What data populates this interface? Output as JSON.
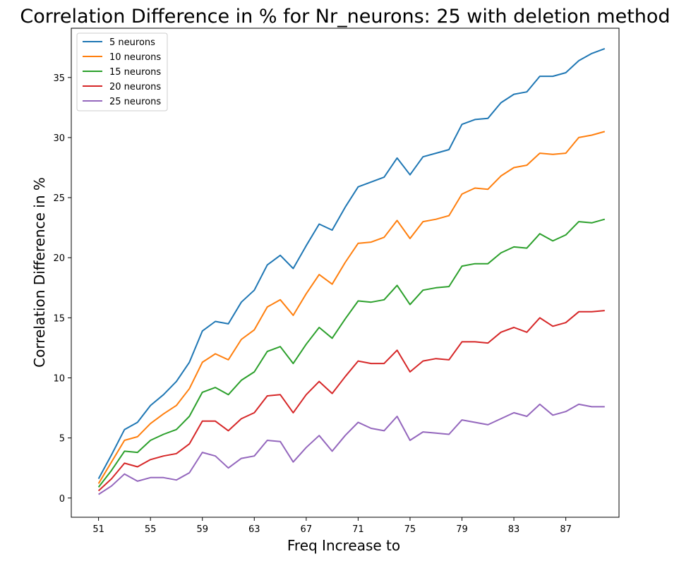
{
  "chart_data": {
    "type": "line",
    "title": "Correlation Difference in % for Nr_neurons:  25 with deletion method",
    "xlabel": "Freq Increase to",
    "ylabel": "Correlation Difference in %",
    "xlim": [
      48.9,
      91.1
    ],
    "ylim": [
      -1.6,
      39.1
    ],
    "xticks": [
      51,
      55,
      59,
      63,
      67,
      71,
      75,
      79,
      83,
      87
    ],
    "yticks": [
      0,
      5,
      10,
      15,
      20,
      25,
      30,
      35
    ],
    "grid": false,
    "legend_position": "top-left",
    "x": [
      51,
      52,
      53,
      54,
      55,
      56,
      57,
      58,
      59,
      60,
      61,
      62,
      63,
      64,
      65,
      66,
      67,
      68,
      69,
      70,
      71,
      72,
      73,
      74,
      75,
      76,
      77,
      78,
      79,
      80,
      81,
      82,
      83,
      84,
      85,
      86,
      87,
      88,
      89,
      90
    ],
    "series": [
      {
        "name": "5 neurons",
        "color": "#1f77b4",
        "values": [
          1.6,
          3.6,
          5.7,
          6.3,
          7.7,
          8.6,
          9.7,
          11.3,
          13.9,
          14.7,
          14.5,
          16.3,
          17.3,
          19.4,
          20.2,
          19.1,
          21.0,
          22.8,
          22.3,
          24.2,
          25.9,
          26.3,
          26.7,
          28.3,
          26.9,
          28.4,
          28.7,
          29.0,
          31.1,
          31.5,
          31.6,
          32.9,
          33.6,
          33.8,
          35.1,
          35.1,
          35.4,
          36.4,
          37.0,
          37.4
        ]
      },
      {
        "name": "10 neurons",
        "color": "#ff7f0e",
        "values": [
          1.2,
          3.0,
          4.8,
          5.1,
          6.2,
          7.0,
          7.7,
          9.1,
          11.3,
          12.0,
          11.5,
          13.2,
          14.0,
          15.9,
          16.5,
          15.2,
          17.0,
          18.6,
          17.8,
          19.6,
          21.2,
          21.3,
          21.7,
          23.1,
          21.6,
          23.0,
          23.2,
          23.5,
          25.3,
          25.8,
          25.7,
          26.8,
          27.5,
          27.7,
          28.7,
          28.6,
          28.7,
          30.0,
          30.2,
          30.5
        ]
      },
      {
        "name": "15 neurons",
        "color": "#2ca02c",
        "values": [
          0.9,
          2.3,
          3.9,
          3.8,
          4.8,
          5.3,
          5.7,
          6.8,
          8.8,
          9.2,
          8.6,
          9.8,
          10.5,
          12.2,
          12.6,
          11.2,
          12.8,
          14.2,
          13.3,
          14.9,
          16.4,
          16.3,
          16.5,
          17.7,
          16.1,
          17.3,
          17.5,
          17.6,
          19.3,
          19.5,
          19.5,
          20.4,
          20.9,
          20.8,
          22.0,
          21.4,
          21.9,
          23.0,
          22.9,
          23.2
        ]
      },
      {
        "name": "20 neurons",
        "color": "#d62728",
        "values": [
          0.6,
          1.6,
          2.9,
          2.6,
          3.2,
          3.5,
          3.7,
          4.5,
          6.4,
          6.4,
          5.6,
          6.6,
          7.1,
          8.5,
          8.6,
          7.1,
          8.6,
          9.7,
          8.7,
          10.1,
          11.4,
          11.2,
          11.2,
          12.3,
          10.5,
          11.4,
          11.6,
          11.5,
          13.0,
          13.0,
          12.9,
          13.8,
          14.2,
          13.8,
          15.0,
          14.3,
          14.6,
          15.5,
          15.5,
          15.6
        ]
      },
      {
        "name": "25 neurons",
        "color": "#9467bd",
        "values": [
          0.3,
          1.0,
          2.0,
          1.4,
          1.7,
          1.7,
          1.5,
          2.1,
          3.8,
          3.5,
          2.5,
          3.3,
          3.5,
          4.8,
          4.7,
          3.0,
          4.2,
          5.2,
          3.9,
          5.2,
          6.3,
          5.8,
          5.6,
          6.8,
          4.8,
          5.5,
          5.4,
          5.3,
          6.5,
          6.3,
          6.1,
          6.6,
          7.1,
          6.8,
          7.8,
          6.9,
          7.2,
          7.8,
          7.6,
          7.6
        ]
      }
    ]
  }
}
